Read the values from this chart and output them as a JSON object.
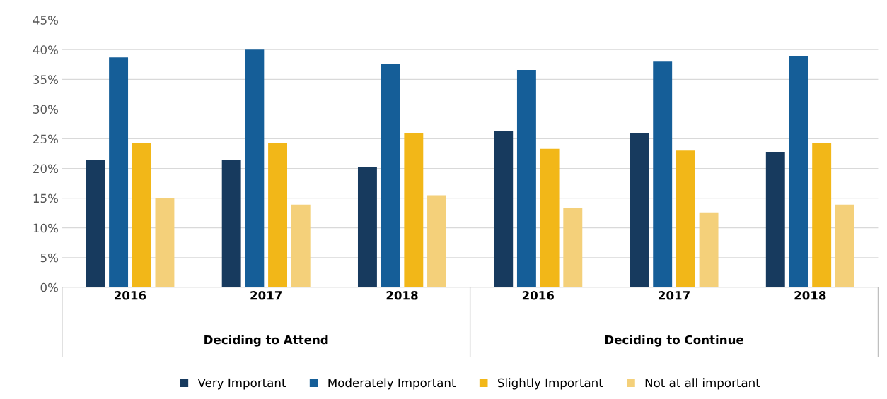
{
  "chart_data": {
    "type": "bar",
    "categories": [
      "2016",
      "2017",
      "2018",
      "2016",
      "2017",
      "2018"
    ],
    "series": [
      {
        "name": "Very Important",
        "color": "#173a5e",
        "values": [
          21.5,
          21.5,
          20.3,
          26.3,
          26.0,
          22.8
        ]
      },
      {
        "name": "Moderately Important",
        "color": "#155e98",
        "values": [
          38.7,
          40.0,
          37.6,
          36.6,
          38.0,
          38.9
        ]
      },
      {
        "name": "Slightly Important",
        "color": "#f2b718",
        "values": [
          24.3,
          24.3,
          25.9,
          23.3,
          23.0,
          24.3
        ]
      },
      {
        "name": "Not at all important",
        "color": "#f4d07a",
        "values": [
          15.0,
          13.9,
          15.5,
          13.4,
          12.6,
          13.9
        ]
      }
    ],
    "annotations": [
      "Deciding to Attend",
      "Deciding to Continue"
    ],
    "ylim": [
      0,
      45
    ],
    "yticks": [
      {
        "value": 0,
        "label": "0%"
      },
      {
        "value": 5,
        "label": "5%"
      },
      {
        "value": 10,
        "label": "10%"
      },
      {
        "value": 15,
        "label": "15%"
      },
      {
        "value": 20,
        "label": "20%"
      },
      {
        "value": 25,
        "label": "25%"
      },
      {
        "value": 30,
        "label": "30%"
      },
      {
        "value": 35,
        "label": "35%"
      },
      {
        "value": 40,
        "label": "40%"
      },
      {
        "value": 45,
        "label": "45%"
      }
    ],
    "grid": "y",
    "legend": "bottom"
  }
}
